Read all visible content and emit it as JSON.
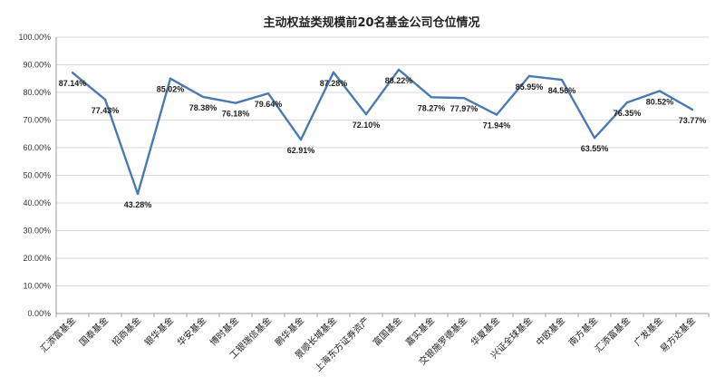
{
  "chart_data": {
    "type": "line",
    "title": "主动权益类规模前20名基金公司仓位情况",
    "categories": [
      "汇添富基金",
      "国泰基金",
      "招商基金",
      "银华基金",
      "华安基金",
      "博时基金",
      "工银瑞信基金",
      "鹏华基金",
      "景顺长城基金",
      "上海东方证券资产",
      "富国基金",
      "嘉实基金",
      "交银施罗德基金",
      "华夏基金",
      "兴证全球基金",
      "中欧基金",
      "南方基金",
      "汇添富基金",
      "广发基金",
      "易方达基金"
    ],
    "series": [
      {
        "values": [
          87.14,
          77.43,
          43.28,
          85.02,
          78.38,
          76.18,
          79.64,
          62.91,
          87.28,
          72.1,
          88.22,
          78.27,
          77.97,
          71.94,
          85.95,
          84.56,
          63.55,
          76.35,
          80.52,
          73.77
        ],
        "labels": [
          "87.14%",
          "77.43%",
          "43.28%",
          "85.02%",
          "78.38%",
          "76.18%",
          "79.64%",
          "62.91%",
          "87.28%",
          "72.10%",
          "88.22%",
          "78.27%",
          "77.97%",
          "71.94%",
          "85.95%",
          "84.56%",
          "63.55%",
          "76.35%",
          "80.52%",
          "73.77%"
        ],
        "color": "#4a7ab0"
      }
    ],
    "ylim": [
      0,
      100
    ],
    "yticks": [
      "0.00%",
      "10.00%",
      "20.00%",
      "30.00%",
      "40.00%",
      "50.00%",
      "60.00%",
      "70.00%",
      "80.00%",
      "90.00%",
      "100.00%"
    ],
    "grid": true,
    "legend": "none"
  }
}
